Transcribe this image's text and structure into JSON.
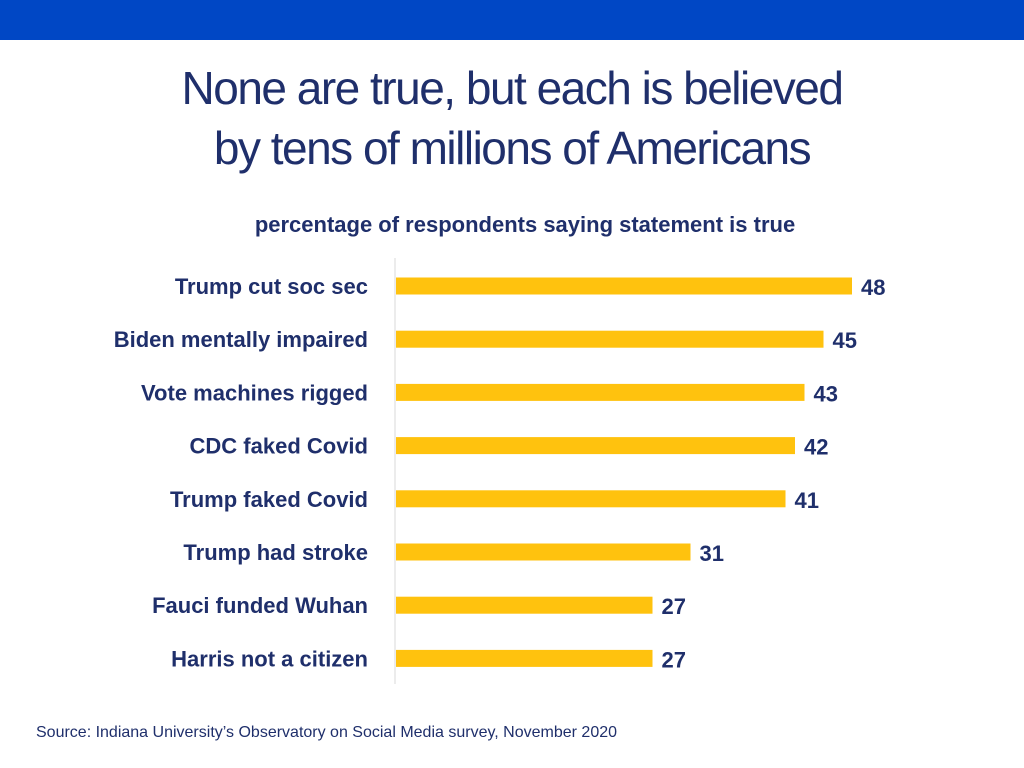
{
  "colors": {
    "top_band": "#0047c5",
    "bar": "#ffc20e",
    "text": "#1f2f6b",
    "axis": "#e6e6e6"
  },
  "title_lines": [
    "None are true, but each is believed",
    "by tens of millions of Americans"
  ],
  "subtitle": "percentage of respondents saying statement is true",
  "source": "Source: Indiana University’s Observatory on Social Media survey, November 2020",
  "chart_data": {
    "type": "bar",
    "orientation": "horizontal",
    "categories": [
      "Trump cut soc sec",
      "Biden mentally impaired",
      "Vote machines rigged",
      "CDC faked Covid",
      "Trump faked Covid",
      "Trump had stroke",
      "Fauci funded Wuhan",
      "Harris not a citizen"
    ],
    "values": [
      48,
      45,
      43,
      42,
      41,
      31,
      27,
      27
    ],
    "data_labels": true,
    "grid": false,
    "legend": "none"
  }
}
